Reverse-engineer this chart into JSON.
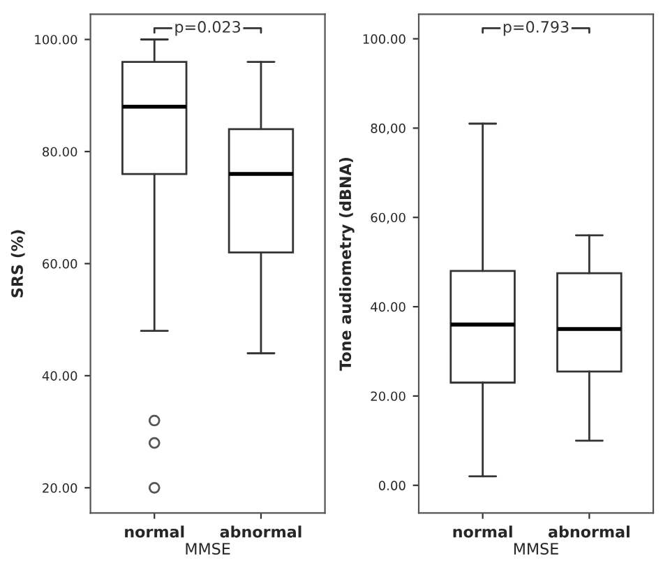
{
  "chart_data": [
    {
      "type": "box",
      "categories": [
        "normal",
        "abnormal"
      ],
      "xlabel": "MMSE",
      "ylabel": "SRS (%)",
      "annotations": [
        "p=0.023"
      ],
      "boxes": [
        {
          "low": 48,
          "q1": 76,
          "median": 88,
          "q3": 96,
          "high": 100,
          "outliers": [
            32,
            28,
            20
          ]
        },
        {
          "low": 44,
          "q1": 62,
          "median": 76,
          "q3": 84,
          "high": 96
        }
      ],
      "ylim": [
        15.5,
        104.5
      ],
      "yticks": [
        {
          "value": 20,
          "label": "20.00"
        },
        {
          "value": 40,
          "label": "40.00"
        },
        {
          "value": 60,
          "label": "60.00"
        },
        {
          "value": 80,
          "label": "80.00"
        },
        {
          "value": 100,
          "label": "100.00"
        }
      ],
      "grid": false
    },
    {
      "type": "box",
      "categories": [
        "normal",
        "abnormal"
      ],
      "xlabel": "MMSE",
      "ylabel": "Tone audiometry (dBNA)",
      "annotations": [
        "p=0.793"
      ],
      "boxes": [
        {
          "low": 2,
          "q1": 23,
          "median": 36,
          "q3": 48,
          "high": 81
        },
        {
          "low": 10,
          "q1": 25.5,
          "median": 35,
          "q3": 47.5,
          "high": 56
        }
      ],
      "ylim": [
        -6.2,
        105.5
      ],
      "yticks": [
        {
          "value": 0,
          "label": "0.00"
        },
        {
          "value": 20,
          "label": "20.00"
        },
        {
          "value": 40,
          "label": "40.00"
        },
        {
          "value": 60,
          "label": "60,00"
        },
        {
          "value": 80,
          "label": "80,00"
        },
        {
          "value": 100,
          "label": "100.00"
        }
      ],
      "grid": false
    }
  ]
}
